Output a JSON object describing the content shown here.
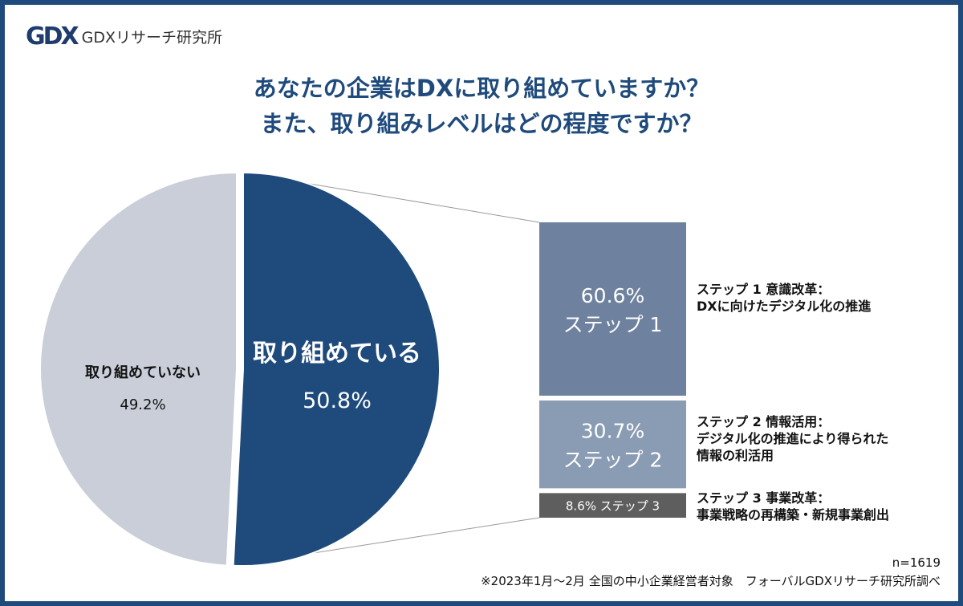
{
  "logo": {
    "mark": "GDX",
    "text": "GDXリサーチ研究所"
  },
  "title": {
    "line1": "あなたの企業はDXに取り組めていますか？",
    "line2": "また、取り組みレベルはどの程度ですか？"
  },
  "colors": {
    "border": "#1f4a7c",
    "doing": "#1f4a7c",
    "not_doing": "#c9ced8",
    "step1": "#6e819e",
    "step2": "#8a9bb4",
    "step3": "#5e5e5e"
  },
  "chart_data": {
    "type": "pie",
    "subtype": "bar-of-pie",
    "slices": [
      {
        "label": "取り組めている",
        "value": 50.8,
        "value_label": "50.8%"
      },
      {
        "label": "取り組めていない",
        "value": 49.2,
        "value_label": "49.2%"
      }
    ],
    "breakdown_of": "取り組めている",
    "breakdown": [
      {
        "label": "ステップ 1",
        "value": 60.6,
        "value_label": "60.6%",
        "desc_title": "ステップ 1  意識改革：",
        "desc": [
          "DXに向けたデジタル化の推進"
        ]
      },
      {
        "label": "ステップ 2",
        "value": 30.7,
        "value_label": "30.7%",
        "desc_title": "ステップ 2  情報活用：",
        "desc": [
          "デジタル化の推進により得られた",
          "情報の利活用"
        ]
      },
      {
        "label": "ステップ 3",
        "value": 8.6,
        "value_label": "8.6%",
        "desc_title": "ステップ 3  事業改革：",
        "desc": [
          "事業戦略の再構築・新規事業創出"
        ]
      }
    ]
  },
  "footer": {
    "n": "n=1619",
    "note": "※2023年1月～2月 全国の中小企業経営者対象　フォーバルGDXリサーチ研究所調べ"
  }
}
